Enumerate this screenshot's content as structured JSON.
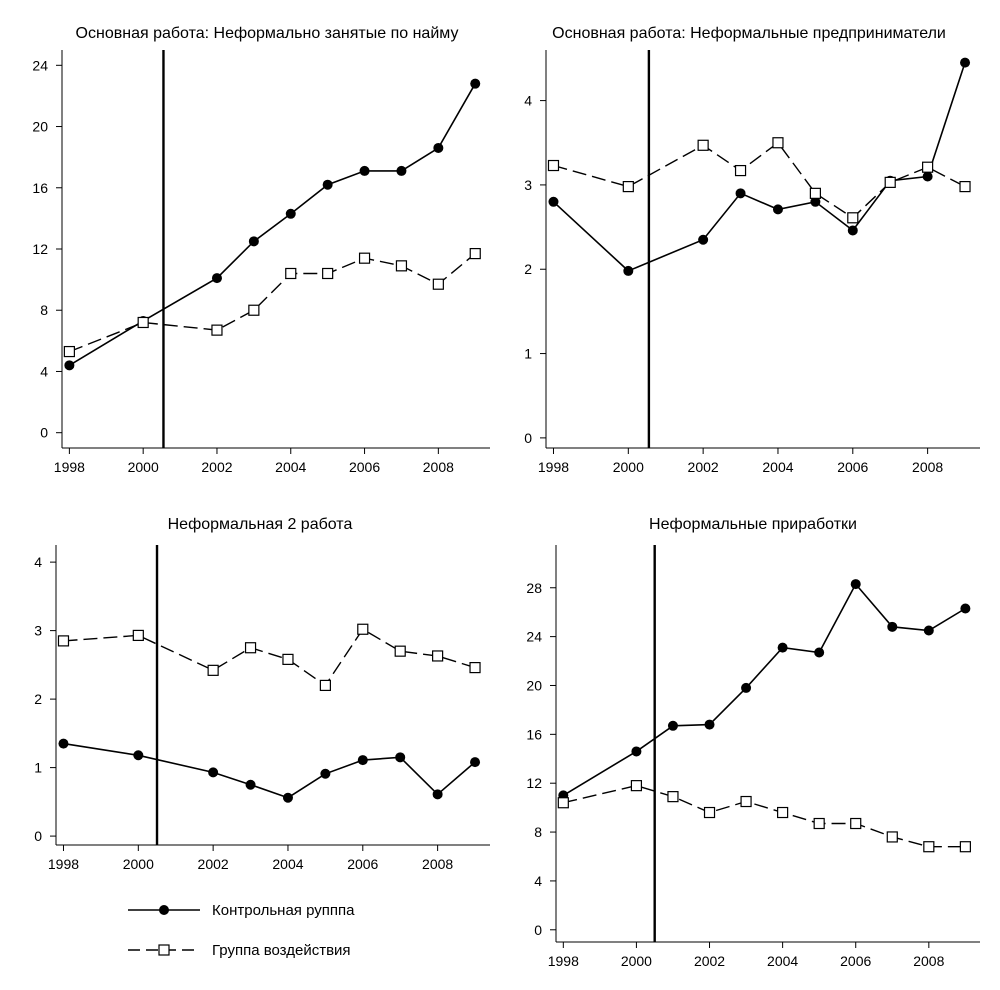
{
  "chart_data": [
    {
      "type": "line",
      "title": "Основная работа: Неформально занятые по найму",
      "x_ticks": [
        1998,
        2000,
        2002,
        2004,
        2006,
        2008
      ],
      "y_ticks": [
        0,
        4,
        8,
        12,
        16,
        20,
        24
      ],
      "xlim": [
        1997.8,
        2009.4
      ],
      "ylim": [
        -1,
        25
      ],
      "vline": 2000.55,
      "series": [
        {
          "name": "Контрольная рупппа",
          "style": "solid-filled-circle",
          "x": [
            1998,
            2000,
            2002,
            2003,
            2004,
            2005,
            2006,
            2007,
            2008,
            2009
          ],
          "y": [
            4.4,
            7.3,
            10.1,
            12.5,
            14.3,
            16.2,
            17.1,
            17.1,
            18.6,
            22.8
          ]
        },
        {
          "name": "Группа воздействия",
          "style": "dashed-open-square",
          "x": [
            1998,
            2000,
            2002,
            2003,
            2004,
            2005,
            2006,
            2007,
            2008,
            2009
          ],
          "y": [
            5.3,
            7.2,
            6.7,
            8.0,
            10.4,
            10.4,
            11.4,
            10.9,
            9.7,
            11.7
          ]
        }
      ]
    },
    {
      "type": "line",
      "title": "Основная работа: Неформальные предприниматели",
      "x_ticks": [
        1998,
        2000,
        2002,
        2004,
        2006,
        2008
      ],
      "y_ticks": [
        0,
        1,
        2,
        3,
        4
      ],
      "xlim": [
        1997.8,
        2009.4
      ],
      "ylim": [
        -0.12,
        4.6
      ],
      "vline": 2000.55,
      "series": [
        {
          "name": "Контрольная рупппа",
          "style": "solid-filled-circle",
          "x": [
            1998,
            2000,
            2002,
            2003,
            2004,
            2005,
            2006,
            2007,
            2008,
            2009
          ],
          "y": [
            2.8,
            1.98,
            2.35,
            2.9,
            2.71,
            2.8,
            2.46,
            3.05,
            3.1,
            4.45
          ]
        },
        {
          "name": "Группа воздействия",
          "style": "dashed-open-square",
          "x": [
            1998,
            2000,
            2002,
            2003,
            2004,
            2005,
            2006,
            2007,
            2008,
            2009
          ],
          "y": [
            3.23,
            2.98,
            3.47,
            3.17,
            3.5,
            2.9,
            2.61,
            3.03,
            3.21,
            2.98
          ]
        }
      ]
    },
    {
      "type": "line",
      "title": "Неформальная 2 работа",
      "x_ticks": [
        1998,
        2000,
        2002,
        2004,
        2006,
        2008
      ],
      "y_ticks": [
        0,
        1,
        2,
        3,
        4
      ],
      "xlim": [
        1997.8,
        2009.4
      ],
      "ylim": [
        -0.13,
        4.25
      ],
      "vline": 2000.5,
      "series": [
        {
          "name": "Контрольная рупппа",
          "style": "solid-filled-circle",
          "x": [
            1998,
            2000,
            2002,
            2003,
            2004,
            2005,
            2006,
            2007,
            2008,
            2009
          ],
          "y": [
            1.35,
            1.18,
            0.93,
            0.75,
            0.56,
            0.91,
            1.11,
            1.15,
            0.61,
            1.08
          ]
        },
        {
          "name": "Группа воздействия",
          "style": "dashed-open-square",
          "x": [
            1998,
            2000,
            2002,
            2003,
            2004,
            2005,
            2006,
            2007,
            2008,
            2009
          ],
          "y": [
            2.85,
            2.93,
            2.42,
            2.75,
            2.58,
            2.2,
            3.02,
            2.7,
            2.63,
            2.46
          ]
        }
      ]
    },
    {
      "type": "line",
      "title": "Неформальные приработки",
      "x_ticks": [
        1998,
        2000,
        2002,
        2004,
        2006,
        2008
      ],
      "y_ticks": [
        0,
        4,
        8,
        12,
        16,
        20,
        24,
        28
      ],
      "xlim": [
        1997.8,
        2009.4
      ],
      "ylim": [
        -1,
        31.5
      ],
      "vline": 2000.5,
      "series": [
        {
          "name": "Контрольная рупппа",
          "style": "solid-filled-circle",
          "x": [
            1998,
            2000,
            2001,
            2002,
            2003,
            2004,
            2005,
            2006,
            2007,
            2008,
            2009
          ],
          "y": [
            11.0,
            14.6,
            16.7,
            16.8,
            19.8,
            23.1,
            22.7,
            28.3,
            24.8,
            24.5,
            26.3
          ]
        },
        {
          "name": "Группа воздействия",
          "style": "dashed-open-square",
          "x": [
            1998,
            2000,
            2001,
            2002,
            2003,
            2004,
            2005,
            2006,
            2007,
            2008,
            2009
          ],
          "y": [
            10.4,
            11.8,
            10.9,
            9.6,
            10.5,
            9.6,
            8.7,
            8.7,
            7.6,
            6.8,
            6.8
          ]
        }
      ]
    }
  ],
  "legend": {
    "items": [
      {
        "label": "Контрольная рупппа",
        "style": "solid-filled-circle"
      },
      {
        "label": "Группа воздействия",
        "style": "dashed-open-square"
      }
    ]
  }
}
